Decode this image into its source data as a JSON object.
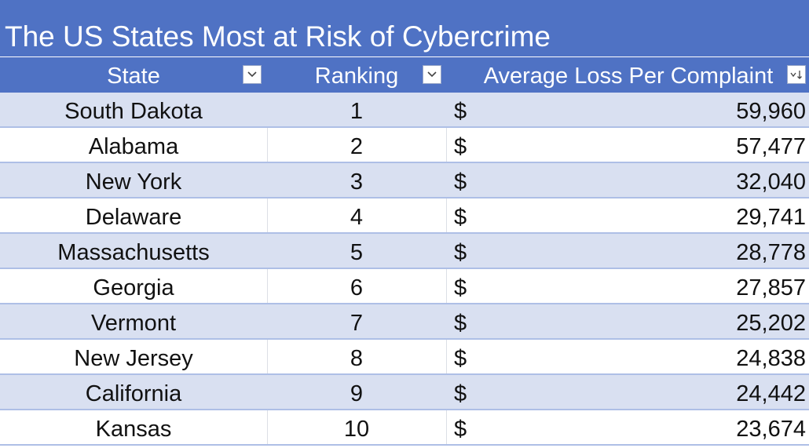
{
  "title": "The US States Most at Risk of Cybercrime",
  "columns": {
    "state": "State",
    "ranking": "Ranking",
    "loss": "Average Loss Per Complaint"
  },
  "colors": {
    "header_bg": "#4f72c4",
    "band_row": "#d9e0f1",
    "row_border": "#aebfe6"
  },
  "icons": {
    "state_filter": "dropdown-arrow-icon",
    "ranking_filter": "dropdown-arrow-icon",
    "loss_filter": "sort-descending-filter-icon"
  },
  "rows": [
    {
      "state": "South Dakota",
      "rank": "1",
      "currency": "$",
      "loss": "59,960"
    },
    {
      "state": "Alabama",
      "rank": "2",
      "currency": "$",
      "loss": "57,477"
    },
    {
      "state": "New York",
      "rank": "3",
      "currency": "$",
      "loss": "32,040"
    },
    {
      "state": "Delaware",
      "rank": "4",
      "currency": "$",
      "loss": "29,741"
    },
    {
      "state": "Massachusetts",
      "rank": "5",
      "currency": "$",
      "loss": "28,778"
    },
    {
      "state": "Georgia",
      "rank": "6",
      "currency": "$",
      "loss": "27,857"
    },
    {
      "state": "Vermont",
      "rank": "7",
      "currency": "$",
      "loss": "25,202"
    },
    {
      "state": "New Jersey",
      "rank": "8",
      "currency": "$",
      "loss": "24,838"
    },
    {
      "state": "California",
      "rank": "9",
      "currency": "$",
      "loss": "24,442"
    },
    {
      "state": "Kansas",
      "rank": "10",
      "currency": "$",
      "loss": "23,674"
    }
  ]
}
